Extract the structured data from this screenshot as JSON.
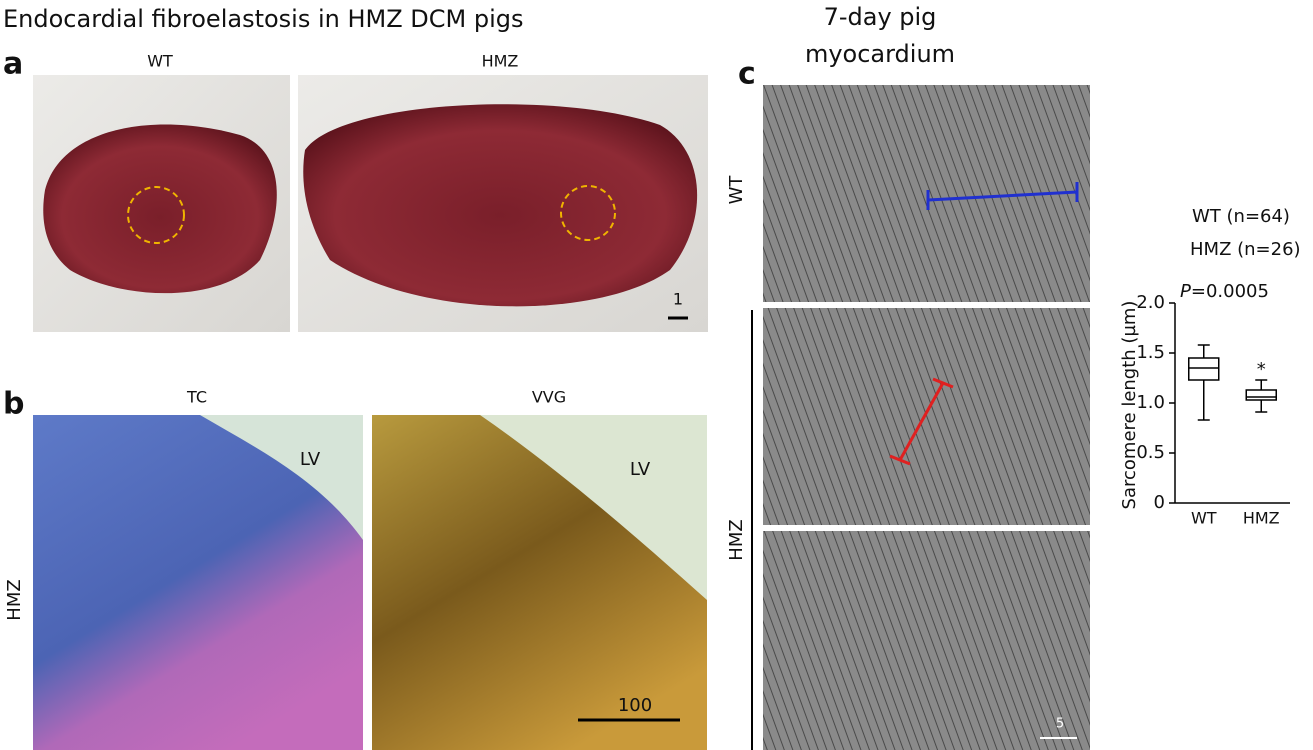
{
  "header": {
    "title": "Endocardial fibroelastosis in HMZ DCM pigs",
    "title_right_1": "7-day pig",
    "title_right_2": "myocardium"
  },
  "panel_a": {
    "letter": "a",
    "label_left": "WT",
    "label_right": "HMZ",
    "scale": "1"
  },
  "panel_b": {
    "letter": "b",
    "label_left": "TC",
    "label_right": "VVG",
    "row_label": "HMZ",
    "lv_left": "LV",
    "lv_right": "LV",
    "scale": "100"
  },
  "panel_c": {
    "letter": "c",
    "row_wt": "WT",
    "row_hmz": "HMZ",
    "scale": "5",
    "legend_wt": "WT (n=64)",
    "legend_hmz": "HMZ (n=26)",
    "p_symbol": "P",
    "p_text": "=0.0005"
  },
  "chart_data": {
    "type": "box",
    "y_label": "Sarcomere length (µm)",
    "categories": [
      "WT",
      "HMZ"
    ],
    "stats": [
      {
        "min": 0.83,
        "q1": 1.23,
        "median": 1.35,
        "q3": 1.45,
        "max": 1.58
      },
      {
        "min": 0.91,
        "q1": 1.03,
        "median": 1.06,
        "q3": 1.13,
        "max": 1.23
      }
    ],
    "annotation": "*",
    "ylim": [
      0,
      2.0
    ],
    "yticks": [
      0,
      {
        "value": 0.5,
        "label": "0.5"
      },
      {
        "value": 1.0,
        "label": "1.0"
      },
      {
        "value": 1.5,
        "label": "1.5"
      },
      {
        "value": 2.0,
        "label": "2.0"
      }
    ]
  }
}
